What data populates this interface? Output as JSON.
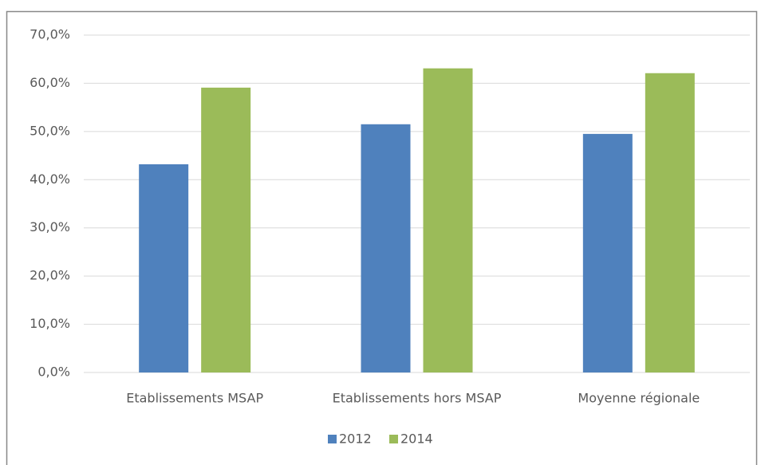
{
  "chart_data": {
    "type": "bar",
    "categories": [
      "Etablissements MSAP",
      "Etablissements hors MSAP",
      "Moyenne régionale"
    ],
    "series": [
      {
        "name": "2012",
        "color": "#4f81bd",
        "values": [
          43.2,
          51.5,
          49.5
        ]
      },
      {
        "name": "2014",
        "color": "#9bbb59",
        "values": [
          59.1,
          63.1,
          62.1
        ]
      }
    ],
    "ylim": [
      0,
      70
    ],
    "yticks": [
      {
        "value": 0,
        "label": "0,0%"
      },
      {
        "value": 10,
        "label": "10,0%"
      },
      {
        "value": 20,
        "label": "20,0%"
      },
      {
        "value": 30,
        "label": "30,0%"
      },
      {
        "value": 40,
        "label": "40,0%"
      },
      {
        "value": 50,
        "label": "50,0%"
      },
      {
        "value": 60,
        "label": "60,0%"
      },
      {
        "value": 70,
        "label": "70,0%"
      }
    ],
    "grid": true,
    "legend": "bottom"
  }
}
